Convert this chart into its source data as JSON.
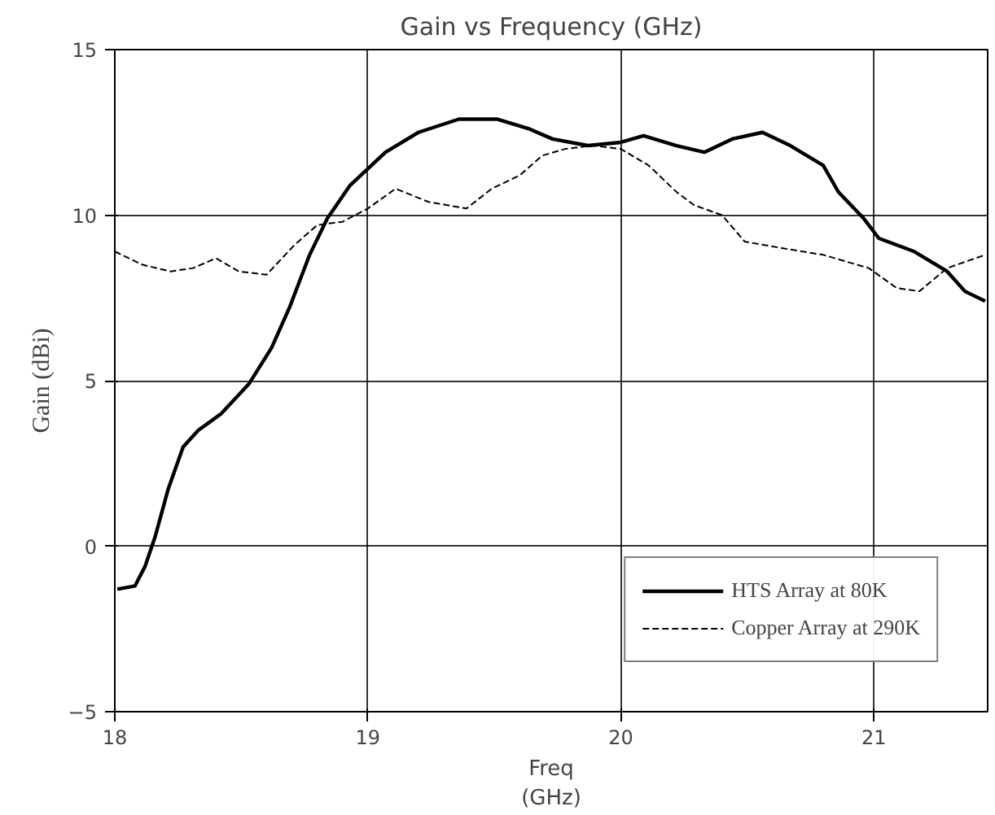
{
  "chart_data": {
    "type": "line",
    "title": "Gain vs Frequency (GHz)",
    "xlabel": "Freq\n(GHz)",
    "ylabel": "Gain (dBi)",
    "xlim": [
      18,
      21.45
    ],
    "xticks": [
      18,
      19,
      20,
      21
    ],
    "ylim": [
      -5,
      15
    ],
    "yticks": [
      -5,
      0,
      5,
      10,
      15
    ],
    "grid": true,
    "legend": "bottom right",
    "series": [
      {
        "name": "HTS Array at 80K",
        "color": "#000000",
        "line_style": "solid",
        "x": [
          18.01,
          18.08,
          18.12,
          18.16,
          18.21,
          18.27,
          18.33,
          18.42,
          18.53,
          18.62,
          18.69,
          18.77,
          18.84,
          18.93,
          19.07,
          19.2,
          19.36,
          19.51,
          19.64,
          19.73,
          19.87,
          20.0,
          20.09,
          20.22,
          20.33,
          20.44,
          20.56,
          20.67,
          20.8,
          20.86,
          20.96,
          21.02,
          21.16,
          21.29,
          21.36,
          21.44
        ],
        "values": [
          -1.3,
          -1.2,
          -0.6,
          0.3,
          1.7,
          3.0,
          3.5,
          4.0,
          4.9,
          6.0,
          7.2,
          8.8,
          9.9,
          10.9,
          11.9,
          12.5,
          12.9,
          12.9,
          12.6,
          12.3,
          12.1,
          12.2,
          12.4,
          12.1,
          11.9,
          12.3,
          12.5,
          12.1,
          11.5,
          10.7,
          9.9,
          9.3,
          8.9,
          8.3,
          7.7,
          7.4
        ]
      },
      {
        "name": "Copper Array at 290K",
        "color": "#000000",
        "line_style": "dashed",
        "x": [
          18.0,
          18.11,
          18.22,
          18.31,
          18.4,
          18.49,
          18.6,
          18.71,
          18.8,
          18.9,
          19.0,
          19.11,
          19.24,
          19.39,
          19.49,
          19.6,
          19.69,
          19.78,
          19.89,
          20.0,
          20.11,
          20.22,
          20.29,
          20.4,
          20.49,
          20.64,
          20.8,
          20.98,
          21.09,
          21.18,
          21.29,
          21.44
        ],
        "values": [
          8.9,
          8.5,
          8.3,
          8.4,
          8.7,
          8.3,
          8.2,
          9.1,
          9.7,
          9.8,
          10.2,
          10.8,
          10.4,
          10.2,
          10.8,
          11.2,
          11.8,
          12.0,
          12.1,
          12.0,
          11.5,
          10.7,
          10.3,
          10.0,
          9.2,
          9.0,
          8.8,
          8.4,
          7.8,
          7.7,
          8.4,
          8.8
        ]
      }
    ]
  }
}
